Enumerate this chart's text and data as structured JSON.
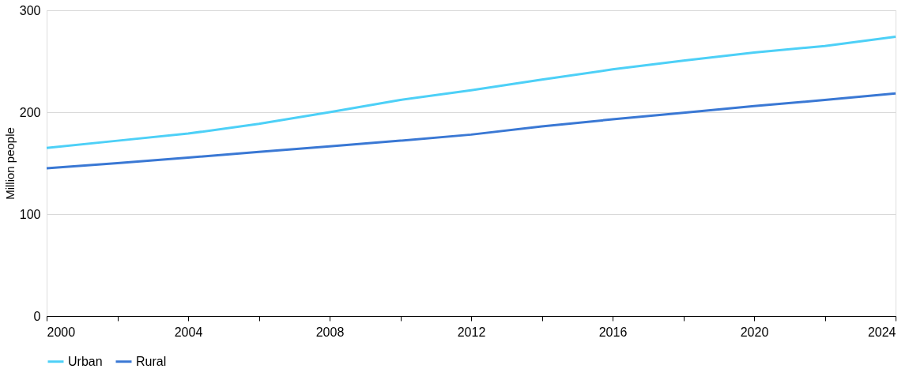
{
  "chart_data": {
    "type": "line",
    "ylabel": "Million people",
    "x": [
      2000,
      2002,
      2004,
      2006,
      2008,
      2010,
      2012,
      2014,
      2016,
      2018,
      2020,
      2022,
      2024
    ],
    "series": [
      {
        "name": "Urban",
        "color": "#4dd0f7",
        "values": [
          165,
          172,
          179,
          188.5,
          200,
          212,
          221.5,
          232,
          242,
          250.5,
          258.5,
          265,
          274
        ]
      },
      {
        "name": "Rural",
        "color": "#3a78d4",
        "values": [
          145,
          150,
          155.5,
          161,
          166.5,
          172,
          178,
          186,
          193,
          199.5,
          206,
          212,
          218.5
        ]
      }
    ],
    "xlim": [
      2000,
      2024
    ],
    "xticks": [
      2000,
      {
        "value": 2002,
        "label": null
      },
      2004,
      {
        "value": 2006,
        "label": null
      },
      2008,
      {
        "value": 2010,
        "label": null
      },
      2012,
      {
        "value": 2014,
        "label": null
      },
      2016,
      {
        "value": 2018,
        "label": null
      },
      2020,
      {
        "value": 2022,
        "label": null
      },
      2024
    ],
    "ylim": [
      0,
      300
    ],
    "yticks": [
      0,
      100,
      200,
      300
    ],
    "grid": "y",
    "legend": "bottom",
    "marker": "none",
    "line_style": "solid"
  }
}
